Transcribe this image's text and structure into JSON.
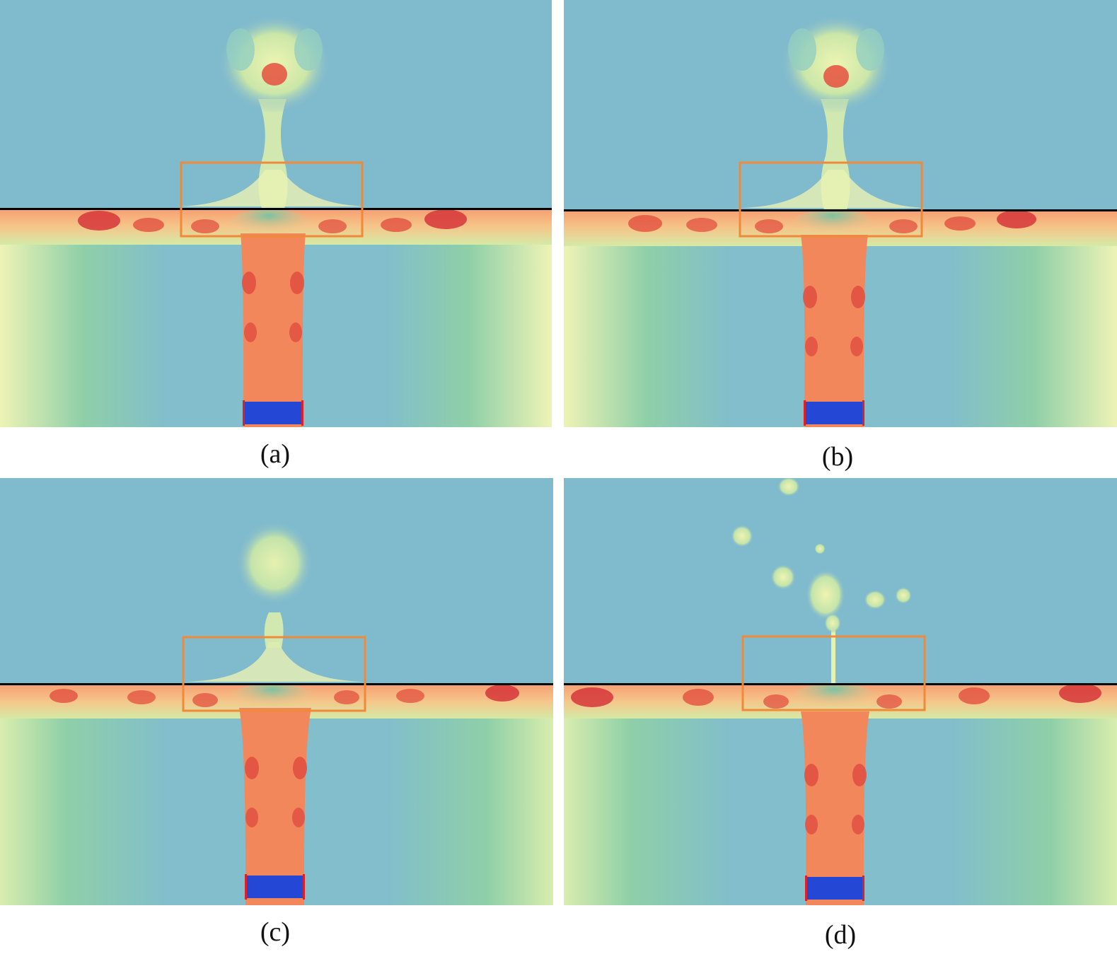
{
  "panels": [
    {
      "id": "a",
      "label": "(a)",
      "plume": "mushroom"
    },
    {
      "id": "b",
      "label": "(b)",
      "plume": "mushroom"
    },
    {
      "id": "c",
      "label": "(c)",
      "plume": "small-cap"
    },
    {
      "id": "d",
      "label": "(d)",
      "plume": "droplets"
    }
  ],
  "colors": {
    "ambient": "#80BACD",
    "mid": "#7FC7A8",
    "light": "#E9F2A8",
    "warm": "#F48A5C",
    "hot": "#D6363A",
    "jet_core": "#F2875B",
    "interface_line": "#000000",
    "highlight_box": "#EE8A3A",
    "inlet": "#2447D6",
    "inlet_edge": "#E02020"
  }
}
